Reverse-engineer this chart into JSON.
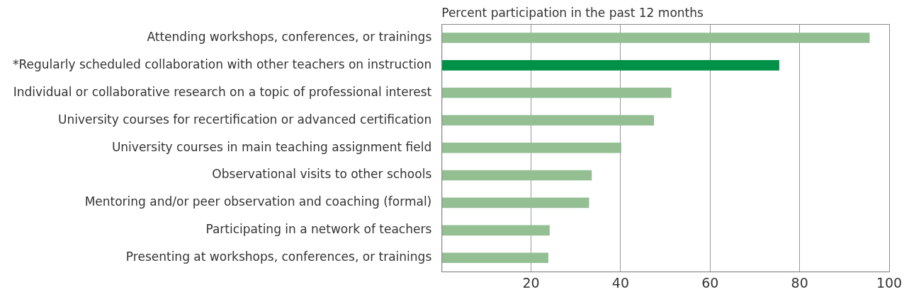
{
  "chart_data": {
    "type": "bar",
    "orientation": "horizontal",
    "xlabel": "Percent participation in the past 12 months",
    "categories": [
      "Attending workshops, conferences, or trainings",
      "*Regularly scheduled collaboration with other teachers on instruction",
      "Individual or collaborative research on a topic of professional interest",
      "University courses for recertification or advanced certification",
      "University courses in main teaching assignment field",
      "Observational visits to other schools",
      "Mentoring and/or peer observation and coaching (formal)",
      "Participating in a network of teachers",
      "Presenting at workshops, conferences, or trainings"
    ],
    "values": [
      95.6,
      75.4,
      51.3,
      47.4,
      40.1,
      33.5,
      32.9,
      24.1,
      23.8
    ],
    "colors": [
      "#93bf93",
      "#009148",
      "#93bf93",
      "#93bf93",
      "#93bf93",
      "#93bf93",
      "#93bf93",
      "#93bf93",
      "#93bf93"
    ],
    "xlim": [
      0,
      100
    ],
    "xticks": [
      20,
      40,
      60,
      80,
      100
    ],
    "grid": "x",
    "legend": false
  }
}
